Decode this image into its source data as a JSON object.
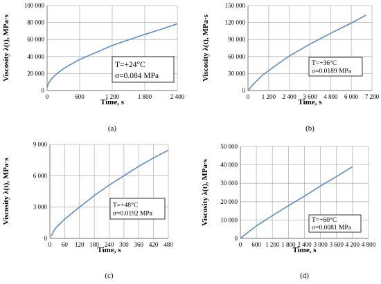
{
  "chart_data": [
    {
      "type": "line",
      "panel_label": "(a)",
      "xlabel": "Time, s",
      "ylabel": "Viscosity λ(t), MPa·s",
      "xlim": [
        0,
        2400
      ],
      "ylim": [
        0,
        100000
      ],
      "xticks": [
        0,
        600,
        1200,
        1800,
        2400
      ],
      "xtick_labels": [
        "0",
        "600",
        "1 200",
        "1 800",
        "2 400"
      ],
      "yticks": [
        0,
        20000,
        40000,
        60000,
        80000,
        100000
      ],
      "ytick_labels": [
        "0",
        "20 000",
        "40 000",
        "60 000",
        "80 000",
        "100 000"
      ],
      "annotation": [
        "T=+24°C",
        "σ=0.084 MPa"
      ],
      "series": [
        {
          "x": [
            0,
            30,
            100,
            200,
            300,
            400,
            600,
            800,
            1000,
            1200,
            1500,
            1800,
            2100,
            2400
          ],
          "values": [
            4000,
            9000,
            15000,
            21000,
            25500,
            29500,
            36500,
            42000,
            47500,
            53000,
            59500,
            66000,
            72000,
            78500
          ]
        }
      ]
    },
    {
      "type": "line",
      "panel_label": "(b)",
      "xlabel": "Time, s",
      "ylabel": "Viscosity λ(t), MPa·s",
      "xlim": [
        0,
        7200
      ],
      "ylim": [
        0,
        150000
      ],
      "xticks": [
        0,
        1200,
        2400,
        3600,
        4800,
        6000,
        7200
      ],
      "xtick_labels": [
        "0",
        "1 200",
        "2 400",
        "3 600",
        "4 800",
        "6 000",
        "7 200"
      ],
      "yticks": [
        0,
        30000,
        60000,
        90000,
        120000,
        150000
      ],
      "ytick_labels": [
        "0",
        "30 000",
        "60 000",
        "90 000",
        "120 000",
        "150 000"
      ],
      "annotation": [
        "T=+36°C",
        "σ=0.0189 MPa"
      ],
      "series": [
        {
          "x": [
            0,
            300,
            800,
            1600,
            2400,
            3600,
            4800,
            6000,
            6850
          ],
          "values": [
            0,
            11000,
            26000,
            44000,
            61000,
            82000,
            101000,
            119000,
            133000
          ]
        }
      ]
    },
    {
      "type": "line",
      "panel_label": "(c)",
      "xlabel": "Time, s",
      "ylabel": "Viscosity λ(t), MPa·s",
      "xlim": [
        0,
        480
      ],
      "ylim": [
        0,
        9000
      ],
      "xticks": [
        0,
        60,
        120,
        180,
        240,
        300,
        360,
        420,
        480
      ],
      "xtick_labels": [
        "0",
        "60",
        "120",
        "180",
        "240",
        "300",
        "360",
        "420",
        "480"
      ],
      "yticks": [
        0,
        3000,
        6000,
        9000
      ],
      "ytick_labels": [
        "0",
        "3 000",
        "6 000",
        "9 000"
      ],
      "annotation": [
        "T=+48°C",
        "σ=0.0192 MPa"
      ],
      "series": [
        {
          "x": [
            5,
            20,
            60,
            120,
            180,
            240,
            300,
            360,
            420,
            480
          ],
          "values": [
            200,
            900,
            1850,
            3000,
            4100,
            5100,
            6000,
            6900,
            7700,
            8450
          ]
        }
      ]
    },
    {
      "type": "line",
      "panel_label": "(d)",
      "xlabel": "Time, s",
      "ylabel": "Viscosity λ(t), MPa·s",
      "xlim": [
        0,
        4800
      ],
      "ylim": [
        0,
        50000
      ],
      "xticks": [
        0,
        600,
        1200,
        1800,
        2400,
        3000,
        3600,
        4200,
        4800
      ],
      "xtick_labels": [
        "0",
        "600",
        "1 200",
        "1 800",
        "2 400",
        "3 000",
        "3 600",
        "4 200",
        "4 800"
      ],
      "yticks": [
        0,
        10000,
        20000,
        30000,
        40000,
        50000
      ],
      "ytick_labels": [
        "0",
        "10 000",
        "20 000",
        "30 000",
        "40 000",
        "50 000"
      ],
      "annotation": [
        "T=+60°C",
        "σ=0.0081 MPa"
      ],
      "series": [
        {
          "x": [
            0,
            300,
            600,
            1200,
            1800,
            2400,
            3000,
            3600,
            4200
          ],
          "values": [
            0,
            3500,
            6800,
            12400,
            17800,
            23000,
            28500,
            33700,
            39000
          ]
        }
      ]
    }
  ]
}
